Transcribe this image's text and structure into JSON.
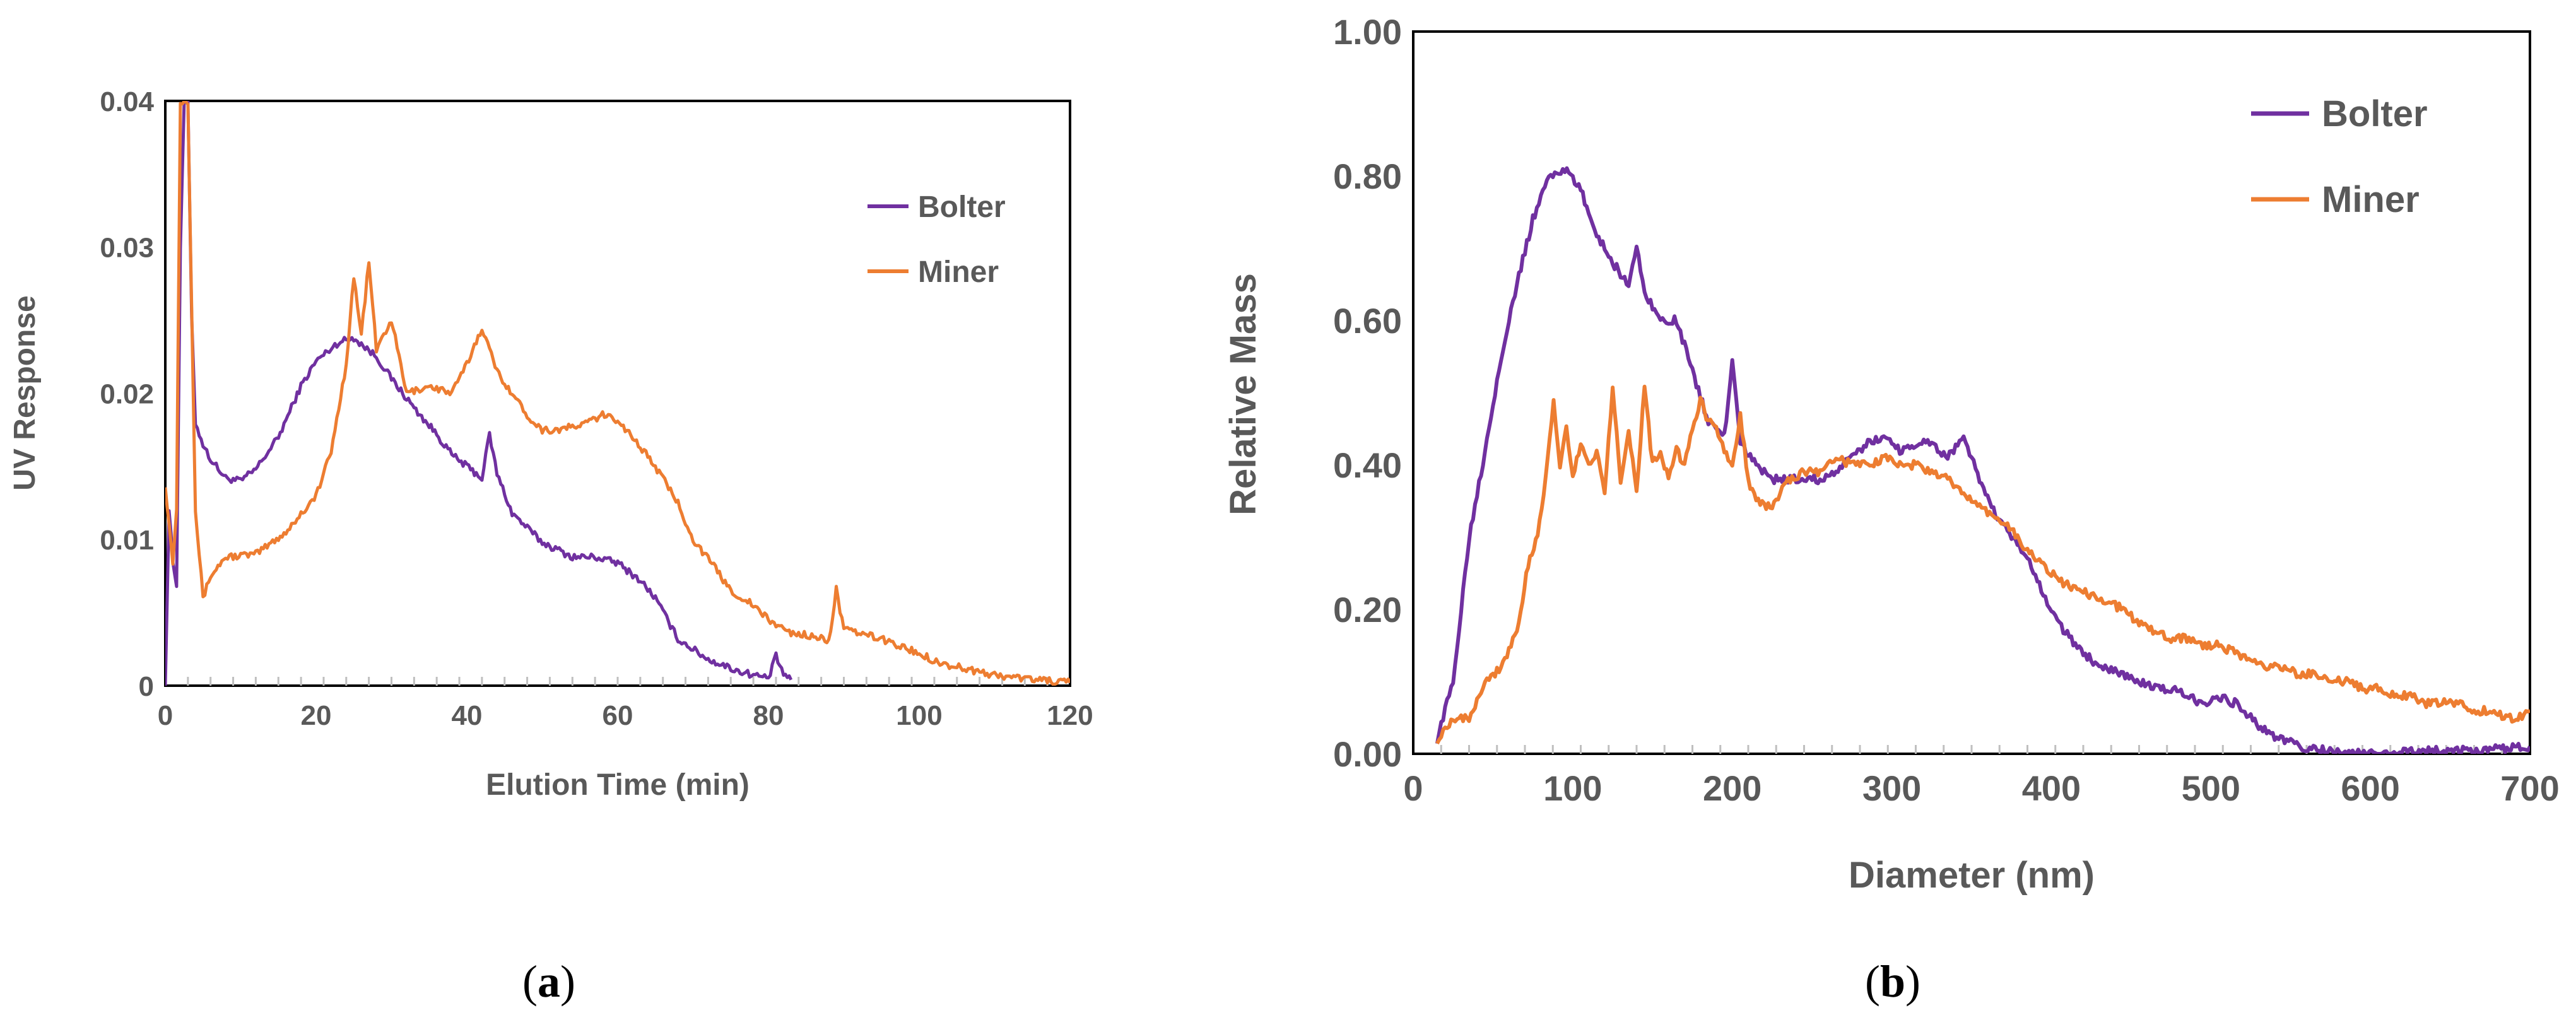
{
  "colors": {
    "bolter": "#7030A0",
    "miner": "#ED7D31",
    "axis": "#000000",
    "text": "#595959"
  },
  "chart_data": [
    {
      "type": "line",
      "panel_label": "a",
      "title": "",
      "xlabel": "Elution Time (min)",
      "ylabel": "UV Response",
      "xlim": [
        0,
        120
      ],
      "ylim": [
        0,
        0.04
      ],
      "xticks": [
        0,
        20,
        40,
        60,
        80,
        100,
        120
      ],
      "xtick_labels": [
        "0",
        "20",
        "40",
        "60",
        "80",
        "100",
        "120"
      ],
      "yticks": [
        0,
        0.01,
        0.02,
        0.03,
        0.04
      ],
      "ytick_labels": [
        "0",
        "0.01",
        "0.02",
        "0.03",
        "0.04"
      ],
      "legend": "top-right",
      "series": [
        {
          "name": "Bolter",
          "color": "#7030A0",
          "points": [
            [
              0,
              0
            ],
            [
              0.5,
              0.012
            ],
            [
              1,
              0.0085
            ],
            [
              1.5,
              0.007
            ],
            [
              2,
              0.03
            ],
            [
              2.5,
              0.04
            ],
            [
              3,
              0.04
            ],
            [
              3.5,
              0.025
            ],
            [
              4,
              0.018
            ],
            [
              5,
              0.0165
            ],
            [
              6,
              0.0155
            ],
            [
              8,
              0.0142
            ],
            [
              10,
              0.014
            ],
            [
              12,
              0.0148
            ],
            [
              15,
              0.017
            ],
            [
              18,
              0.0205
            ],
            [
              20,
              0.0222
            ],
            [
              23,
              0.0235
            ],
            [
              25,
              0.0238
            ],
            [
              28,
              0.0225
            ],
            [
              30,
              0.021
            ],
            [
              33,
              0.019
            ],
            [
              36,
              0.0172
            ],
            [
              38,
              0.0158
            ],
            [
              40,
              0.015
            ],
            [
              42,
              0.0142
            ],
            [
              43,
              0.0172
            ],
            [
              44,
              0.0145
            ],
            [
              46,
              0.0118
            ],
            [
              50,
              0.0098
            ],
            [
              54,
              0.0088
            ],
            [
              57,
              0.0088
            ],
            [
              60,
              0.0084
            ],
            [
              63,
              0.0072
            ],
            [
              65,
              0.006
            ],
            [
              68,
              0.0032
            ],
            [
              72,
              0.0018
            ],
            [
              76,
              0.001
            ],
            [
              80,
              0.0005
            ],
            [
              81,
              0.002
            ],
            [
              82,
              0.0008
            ],
            [
              83,
              0.0004
            ]
          ]
        },
        {
          "name": "Miner",
          "color": "#ED7D31",
          "points": [
            [
              0,
              0.0138
            ],
            [
              0.5,
              0.011
            ],
            [
              1,
              0.0085
            ],
            [
              1.5,
              0.012
            ],
            [
              2,
              0.04
            ],
            [
              3,
              0.04
            ],
            [
              4,
              0.012
            ],
            [
              5,
              0.006
            ],
            [
              6,
              0.0075
            ],
            [
              8,
              0.0088
            ],
            [
              12,
              0.009
            ],
            [
              16,
              0.0105
            ],
            [
              20,
              0.013
            ],
            [
              22,
              0.016
            ],
            [
              24,
              0.022
            ],
            [
              25,
              0.028
            ],
            [
              26,
              0.024
            ],
            [
              27,
              0.029
            ],
            [
              28,
              0.023
            ],
            [
              30,
              0.025
            ],
            [
              32,
              0.02
            ],
            [
              35,
              0.0205
            ],
            [
              38,
              0.02
            ],
            [
              40,
              0.022
            ],
            [
              42,
              0.0245
            ],
            [
              44,
              0.0215
            ],
            [
              46,
              0.02
            ],
            [
              48,
              0.0185
            ],
            [
              50,
              0.0175
            ],
            [
              52,
              0.0175
            ],
            [
              55,
              0.0178
            ],
            [
              58,
              0.0185
            ],
            [
              60,
              0.0182
            ],
            [
              62,
              0.017
            ],
            [
              65,
              0.015
            ],
            [
              68,
              0.0125
            ],
            [
              70,
              0.01
            ],
            [
              73,
              0.008
            ],
            [
              75,
              0.0065
            ],
            [
              78,
              0.0055
            ],
            [
              80,
              0.0045
            ],
            [
              83,
              0.0036
            ],
            [
              86,
              0.0034
            ],
            [
              88,
              0.003
            ],
            [
              89,
              0.0066
            ],
            [
              90,
              0.0038
            ],
            [
              92,
              0.0036
            ],
            [
              95,
              0.0032
            ],
            [
              98,
              0.0026
            ],
            [
              100,
              0.0022
            ],
            [
              103,
              0.0015
            ],
            [
              106,
              0.0012
            ],
            [
              109,
              0.0008
            ],
            [
              112,
              0.0006
            ],
            [
              116,
              0.0004
            ],
            [
              120,
              0.0002
            ]
          ]
        }
      ]
    },
    {
      "type": "line",
      "panel_label": "b",
      "title": "",
      "xlabel": "Diameter (nm)",
      "ylabel": "Relative Mass",
      "xlim": [
        0,
        700
      ],
      "ylim": [
        0,
        1.0
      ],
      "xticks": [
        0,
        100,
        200,
        300,
        400,
        500,
        600,
        700
      ],
      "xtick_labels": [
        "0",
        "100",
        "200",
        "300",
        "400",
        "500",
        "600",
        "700"
      ],
      "yticks": [
        0,
        0.2,
        0.4,
        0.6,
        0.8,
        1.0
      ],
      "ytick_labels": [
        "0.00",
        "0.20",
        "0.40",
        "0.60",
        "0.80",
        "1.00"
      ],
      "legend": "top-right",
      "series": [
        {
          "name": "Bolter",
          "color": "#7030A0",
          "points": [
            [
              15,
              0.02
            ],
            [
              25,
              0.1
            ],
            [
              35,
              0.3
            ],
            [
              45,
              0.42
            ],
            [
              55,
              0.55
            ],
            [
              65,
              0.65
            ],
            [
              75,
              0.74
            ],
            [
              85,
              0.8
            ],
            [
              95,
              0.81
            ],
            [
              105,
              0.78
            ],
            [
              115,
              0.72
            ],
            [
              125,
              0.68
            ],
            [
              135,
              0.65
            ],
            [
              140,
              0.7
            ],
            [
              145,
              0.64
            ],
            [
              155,
              0.6
            ],
            [
              165,
              0.6
            ],
            [
              175,
              0.53
            ],
            [
              185,
              0.46
            ],
            [
              195,
              0.44
            ],
            [
              200,
              0.54
            ],
            [
              205,
              0.43
            ],
            [
              215,
              0.4
            ],
            [
              225,
              0.38
            ],
            [
              235,
              0.38
            ],
            [
              245,
              0.38
            ],
            [
              255,
              0.38
            ],
            [
              265,
              0.39
            ],
            [
              275,
              0.41
            ],
            [
              285,
              0.43
            ],
            [
              295,
              0.44
            ],
            [
              305,
              0.42
            ],
            [
              315,
              0.43
            ],
            [
              325,
              0.43
            ],
            [
              335,
              0.41
            ],
            [
              345,
              0.44
            ],
            [
              355,
              0.38
            ],
            [
              365,
              0.33
            ],
            [
              375,
              0.3
            ],
            [
              385,
              0.27
            ],
            [
              395,
              0.22
            ],
            [
              405,
              0.18
            ],
            [
              415,
              0.15
            ],
            [
              425,
              0.13
            ],
            [
              435,
              0.12
            ],
            [
              445,
              0.11
            ],
            [
              455,
              0.1
            ],
            [
              465,
              0.09
            ],
            [
              475,
              0.09
            ],
            [
              485,
              0.08
            ],
            [
              495,
              0.07
            ],
            [
              505,
              0.08
            ],
            [
              515,
              0.07
            ],
            [
              525,
              0.05
            ],
            [
              535,
              0.03
            ],
            [
              545,
              0.02
            ],
            [
              555,
              0.01
            ],
            [
              570,
              0.005
            ],
            [
              590,
              0.0
            ],
            [
              610,
              0.0
            ],
            [
              640,
              0.005
            ],
            [
              670,
              0.005
            ],
            [
              700,
              0.01
            ]
          ]
        },
        {
          "name": "Miner",
          "color": "#ED7D31",
          "points": [
            [
              15,
              0.02
            ],
            [
              25,
              0.05
            ],
            [
              35,
              0.05
            ],
            [
              45,
              0.1
            ],
            [
              55,
              0.12
            ],
            [
              65,
              0.17
            ],
            [
              72,
              0.26
            ],
            [
              78,
              0.3
            ],
            [
              83,
              0.38
            ],
            [
              88,
              0.49
            ],
            [
              92,
              0.4
            ],
            [
              96,
              0.45
            ],
            [
              100,
              0.38
            ],
            [
              105,
              0.43
            ],
            [
              110,
              0.4
            ],
            [
              115,
              0.42
            ],
            [
              120,
              0.36
            ],
            [
              125,
              0.51
            ],
            [
              130,
              0.38
            ],
            [
              135,
              0.45
            ],
            [
              140,
              0.36
            ],
            [
              145,
              0.51
            ],
            [
              150,
              0.4
            ],
            [
              155,
              0.42
            ],
            [
              160,
              0.38
            ],
            [
              165,
              0.42
            ],
            [
              170,
              0.4
            ],
            [
              175,
              0.45
            ],
            [
              180,
              0.49
            ],
            [
              185,
              0.46
            ],
            [
              190,
              0.45
            ],
            [
              195,
              0.42
            ],
            [
              200,
              0.4
            ],
            [
              205,
              0.47
            ],
            [
              210,
              0.38
            ],
            [
              215,
              0.35
            ],
            [
              225,
              0.34
            ],
            [
              235,
              0.38
            ],
            [
              245,
              0.39
            ],
            [
              255,
              0.39
            ],
            [
              265,
              0.41
            ],
            [
              275,
              0.4
            ],
            [
              285,
              0.4
            ],
            [
              295,
              0.41
            ],
            [
              305,
              0.4
            ],
            [
              315,
              0.4
            ],
            [
              325,
              0.39
            ],
            [
              335,
              0.38
            ],
            [
              345,
              0.36
            ],
            [
              355,
              0.34
            ],
            [
              365,
              0.33
            ],
            [
              375,
              0.31
            ],
            [
              385,
              0.28
            ],
            [
              395,
              0.26
            ],
            [
              405,
              0.24
            ],
            [
              415,
              0.23
            ],
            [
              425,
              0.22
            ],
            [
              435,
              0.21
            ],
            [
              445,
              0.2
            ],
            [
              455,
              0.18
            ],
            [
              465,
              0.17
            ],
            [
              475,
              0.16
            ],
            [
              485,
              0.16
            ],
            [
              495,
              0.15
            ],
            [
              505,
              0.15
            ],
            [
              515,
              0.14
            ],
            [
              525,
              0.13
            ],
            [
              535,
              0.12
            ],
            [
              545,
              0.12
            ],
            [
              555,
              0.11
            ],
            [
              565,
              0.11
            ],
            [
              575,
              0.1
            ],
            [
              585,
              0.1
            ],
            [
              595,
              0.09
            ],
            [
              605,
              0.09
            ],
            [
              615,
              0.08
            ],
            [
              625,
              0.08
            ],
            [
              635,
              0.07
            ],
            [
              645,
              0.07
            ],
            [
              655,
              0.07
            ],
            [
              665,
              0.06
            ],
            [
              675,
              0.06
            ],
            [
              685,
              0.05
            ],
            [
              695,
              0.05
            ],
            [
              700,
              0.06
            ]
          ]
        }
      ]
    }
  ]
}
